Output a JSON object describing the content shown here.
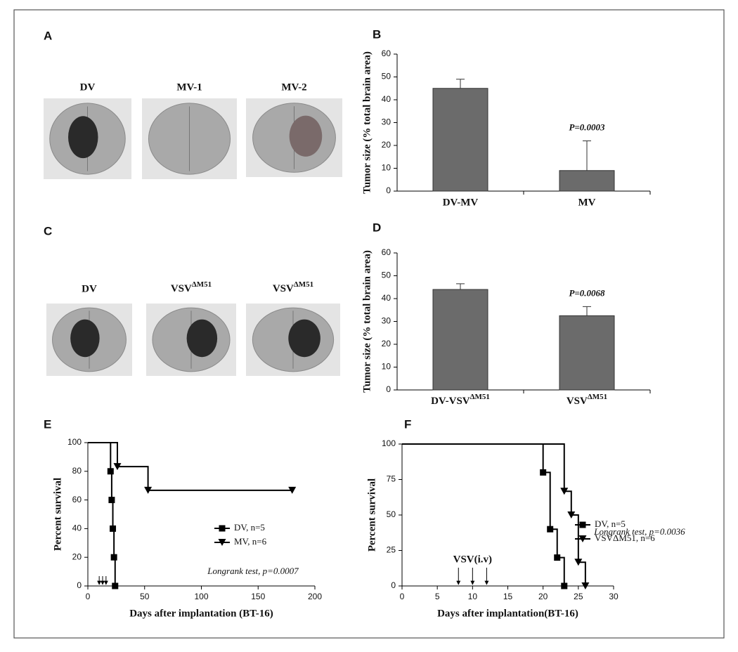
{
  "image_panels": [
    {
      "letter": "A",
      "labels": [
        "DV",
        "MV-1",
        "MV-2"
      ]
    },
    {
      "letter": "C",
      "labels": [
        "DV",
        {
          "text": "VSV",
          "sup": "ΔM51"
        },
        {
          "text": "VSV",
          "sup": "ΔM51"
        }
      ]
    }
  ],
  "chart_data": [
    {
      "type": "bar",
      "letter": "B",
      "ylabel": "Tumor size (% total brain area)",
      "categories": [
        "DV-MV",
        "MV"
      ],
      "values": [
        45,
        9
      ],
      "errors": [
        4,
        13
      ],
      "color": "#6b6b6b",
      "annotation": "P=0.0003",
      "ylim": [
        0,
        60
      ],
      "yticks": [
        0,
        10,
        20,
        30,
        40,
        50,
        60
      ]
    },
    {
      "type": "bar",
      "letter": "D",
      "ylabel": "Tumor size (% total brain area)",
      "categories": [
        {
          "text": "DV-VSV",
          "sup": "ΔM51"
        },
        {
          "text": "VSV",
          "sup": "ΔM51"
        }
      ],
      "values": [
        44,
        32.5
      ],
      "errors": [
        2.5,
        4
      ],
      "color": "#6b6b6b",
      "annotation": "P=0.0068",
      "ylim": [
        0,
        60
      ],
      "yticks": [
        0,
        10,
        20,
        30,
        40,
        50,
        60
      ]
    },
    {
      "type": "survival",
      "letter": "E",
      "xlabel": "Days after implantation (BT-16)",
      "ylabel": "Percent survival",
      "xlim": [
        0,
        200
      ],
      "xticks": [
        0,
        50,
        100,
        150,
        200
      ],
      "ylim": [
        0,
        100
      ],
      "yticks": [
        0,
        20,
        40,
        60,
        80,
        100
      ],
      "series": [
        {
          "name": "DV, n=5",
          "color": "#000000",
          "marker": "square",
          "x": [
            0,
            20,
            21,
            22,
            23,
            24
          ],
          "values": [
            100,
            80,
            60,
            40,
            20,
            0
          ]
        },
        {
          "name": "MV, n=6",
          "color": "#000000",
          "marker": "triangle-down",
          "x": [
            0,
            26,
            53,
            180
          ],
          "values": [
            100,
            83.3,
            66.7,
            66.7
          ]
        }
      ],
      "arrows": [
        10,
        13,
        16
      ],
      "legend": "right",
      "annotation": "Longrank test, p=0.0007"
    },
    {
      "type": "survival",
      "letter": "F",
      "xlabel": "Days after implantation(BT-16)",
      "ylabel": "Percent survival",
      "xlim": [
        0,
        30
      ],
      "xticks": [
        0,
        5,
        10,
        15,
        20,
        25,
        30
      ],
      "ylim": [
        0,
        100
      ],
      "yticks": [
        0,
        25,
        50,
        75,
        100
      ],
      "series": [
        {
          "name": "DV, n=5",
          "color": "#000000",
          "marker": "square",
          "x": [
            0,
            20,
            21,
            22,
            23
          ],
          "values": [
            100,
            80,
            40,
            20,
            0
          ]
        },
        {
          "name": "VSVΔM51, n=6",
          "color": "#000000",
          "marker": "triangle-down",
          "x": [
            0,
            23,
            24,
            25,
            26
          ],
          "values": [
            100,
            66.7,
            50,
            16.7,
            0
          ]
        }
      ],
      "arrows": [
        8,
        10,
        12
      ],
      "arrow_label": "VSV(i.v)",
      "legend": "right",
      "annotation": "Longrank test, p=0.0036"
    }
  ]
}
